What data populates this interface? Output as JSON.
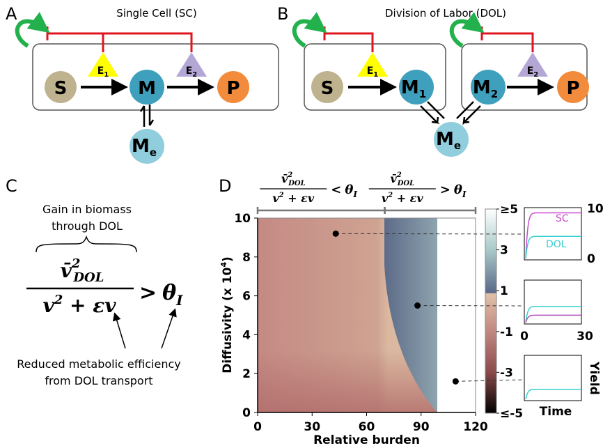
{
  "panel_a": {
    "letter": "A",
    "title": "Single Cell (SC)",
    "nodes": {
      "s": "S",
      "m": "M",
      "p": "P",
      "me": {
        "main": "M",
        "sub": "e"
      }
    },
    "enzymes": [
      {
        "main": "E",
        "sub": "1"
      },
      {
        "main": "E",
        "sub": "2"
      }
    ]
  },
  "panel_b": {
    "letter": "B",
    "title": "Division of Labor (DOL)",
    "nodes": {
      "s": "S",
      "m1": {
        "main": "M",
        "sub": "1"
      },
      "m2": {
        "main": "M",
        "sub": "2"
      },
      "p": "P",
      "me": {
        "main": "M",
        "sub": "e"
      }
    },
    "enzymes": [
      {
        "main": "E",
        "sub": "1"
      },
      {
        "main": "E",
        "sub": "2"
      }
    ]
  },
  "panel_c": {
    "letter": "C",
    "brace_label": [
      "Gain in biomass",
      "through DOL"
    ],
    "formula": {
      "numerator": {
        "base": "v̄",
        "sup": "2",
        "sub": "DOL"
      },
      "denominator": {
        "base": "v",
        "sup": "2",
        "rest": " + εv"
      },
      "relation": ">",
      "threshold": {
        "base": "θ",
        "sub": "I"
      }
    },
    "note": [
      "Reduced metabolic efficiency",
      "from DOL transport"
    ]
  },
  "panel_d": {
    "letter": "D",
    "chart_data": {
      "type": "contour",
      "xlabel": "Relative burden",
      "ylabel": {
        "main": "Diffusivity (x 10",
        "sup": "4",
        "end": ")"
      },
      "xlim": [
        0,
        120
      ],
      "xticks": [
        0,
        30,
        60,
        90,
        120
      ],
      "ylim": [
        0,
        10
      ],
      "yticks": [
        0,
        2,
        4,
        6,
        8,
        10
      ],
      "regions": [
        {
          "relation": "<",
          "xlim": [
            0,
            70
          ]
        },
        {
          "relation": ">",
          "xlim": [
            70,
            120
          ]
        }
      ],
      "colorbar": {
        "lim": [
          -5,
          5
        ],
        "ticks": [
          {
            "value": 5,
            "label": "≥5"
          },
          3,
          1,
          -1,
          -3,
          {
            "value": -5,
            "label": "≤-5"
          }
        ]
      },
      "points": {
        "x": [
          43,
          88,
          109
        ],
        "y": [
          9.2,
          5.5,
          1.6
        ]
      },
      "insets": [
        {
          "yticks": [
            0,
            10
          ],
          "series": [
            "SC",
            "DOL"
          ]
        },
        {
          "xticks": [
            0,
            30
          ]
        },
        {
          "xlabel": "Time",
          "ylabel": "Yield"
        }
      ]
    }
  }
}
